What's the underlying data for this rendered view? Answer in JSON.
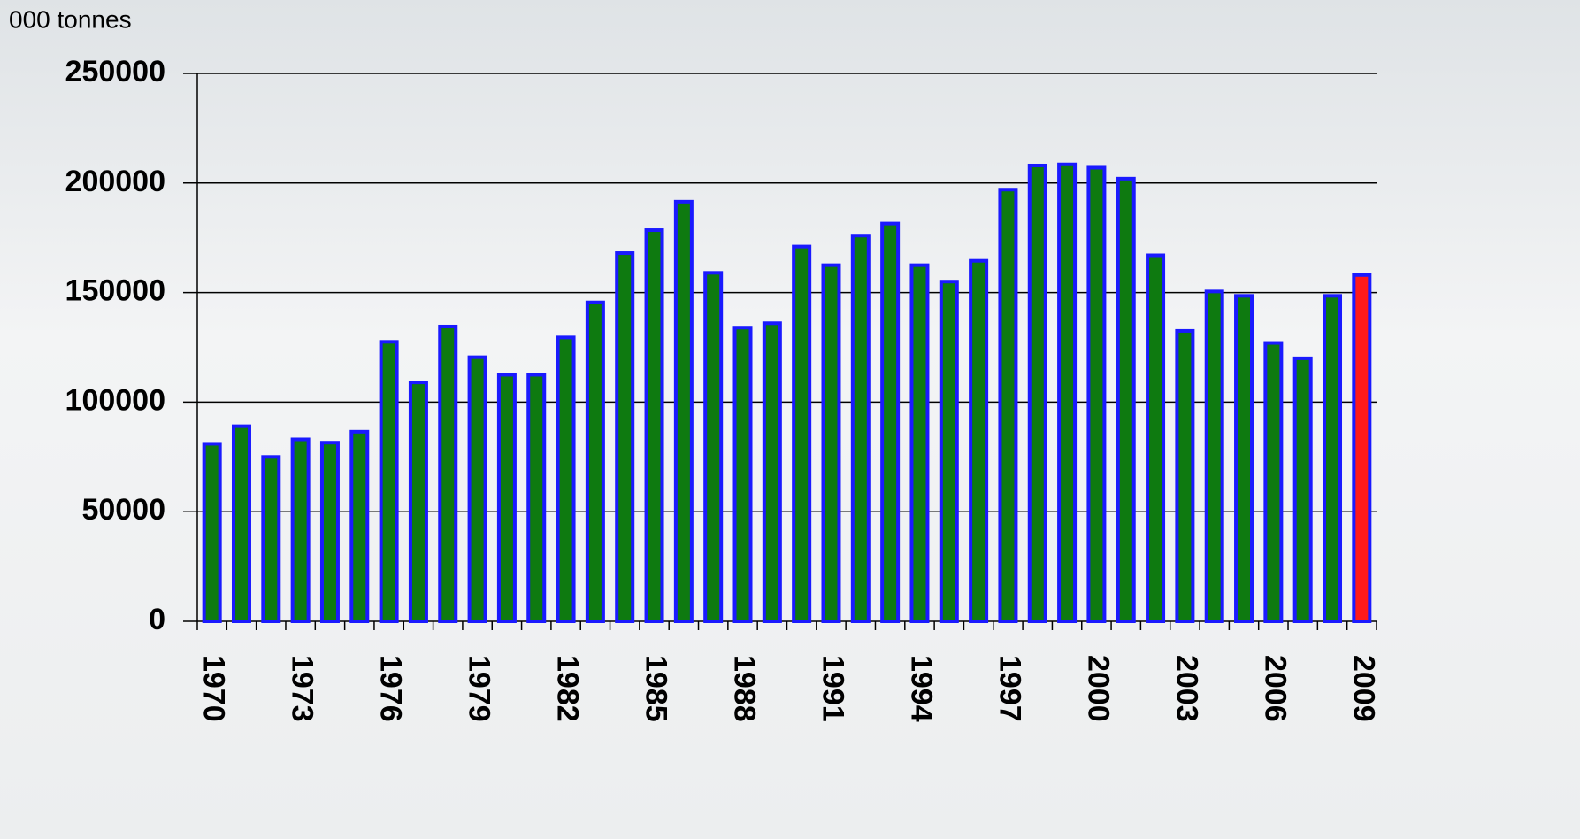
{
  "chart_data": {
    "type": "bar",
    "y_label": "000 tonnes",
    "categories": [
      "1970",
      null,
      null,
      "1973",
      null,
      null,
      "1976",
      null,
      null,
      "1979",
      null,
      null,
      "1982",
      null,
      null,
      "1985",
      null,
      null,
      "1988",
      null,
      null,
      "1991",
      null,
      null,
      "1994",
      null,
      null,
      "1997",
      null,
      null,
      "2000",
      null,
      null,
      "2003",
      null,
      null,
      "2006",
      null,
      null,
      "2009"
    ],
    "values": [
      81000,
      89000,
      75000,
      83000,
      81500,
      86500,
      127500,
      109000,
      134500,
      120500,
      112500,
      112500,
      129500,
      145500,
      168000,
      178500,
      191500,
      159000,
      134000,
      136000,
      171000,
      162500,
      176000,
      181500,
      162500,
      155000,
      164500,
      197000,
      208000,
      208500,
      207000,
      202000,
      167000,
      132500,
      150500,
      148500,
      127000,
      120000,
      148500,
      158000
    ],
    "colors": [
      "#0e7a10",
      "#0e7a10",
      "#0e7a10",
      "#0e7a10",
      "#0e7a10",
      "#0e7a10",
      "#0e7a10",
      "#0e7a10",
      "#0e7a10",
      "#0e7a10",
      "#0e7a10",
      "#0e7a10",
      "#0e7a10",
      "#0e7a10",
      "#0e7a10",
      "#0e7a10",
      "#0e7a10",
      "#0e7a10",
      "#0e7a10",
      "#0e7a10",
      "#0e7a10",
      "#0e7a10",
      "#0e7a10",
      "#0e7a10",
      "#0e7a10",
      "#0e7a10",
      "#0e7a10",
      "#0e7a10",
      "#0e7a10",
      "#0e7a10",
      "#0e7a10",
      "#0e7a10",
      "#0e7a10",
      "#0e7a10",
      "#0e7a10",
      "#0e7a10",
      "#0e7a10",
      "#0e7a10",
      "#0e7a10",
      "#ff1a1a"
    ],
    "edge_color": "#1a1aff",
    "ylim": [
      0,
      250000
    ],
    "yticks": [
      0,
      50000,
      100000,
      150000,
      200000,
      250000
    ],
    "grid": true
  }
}
